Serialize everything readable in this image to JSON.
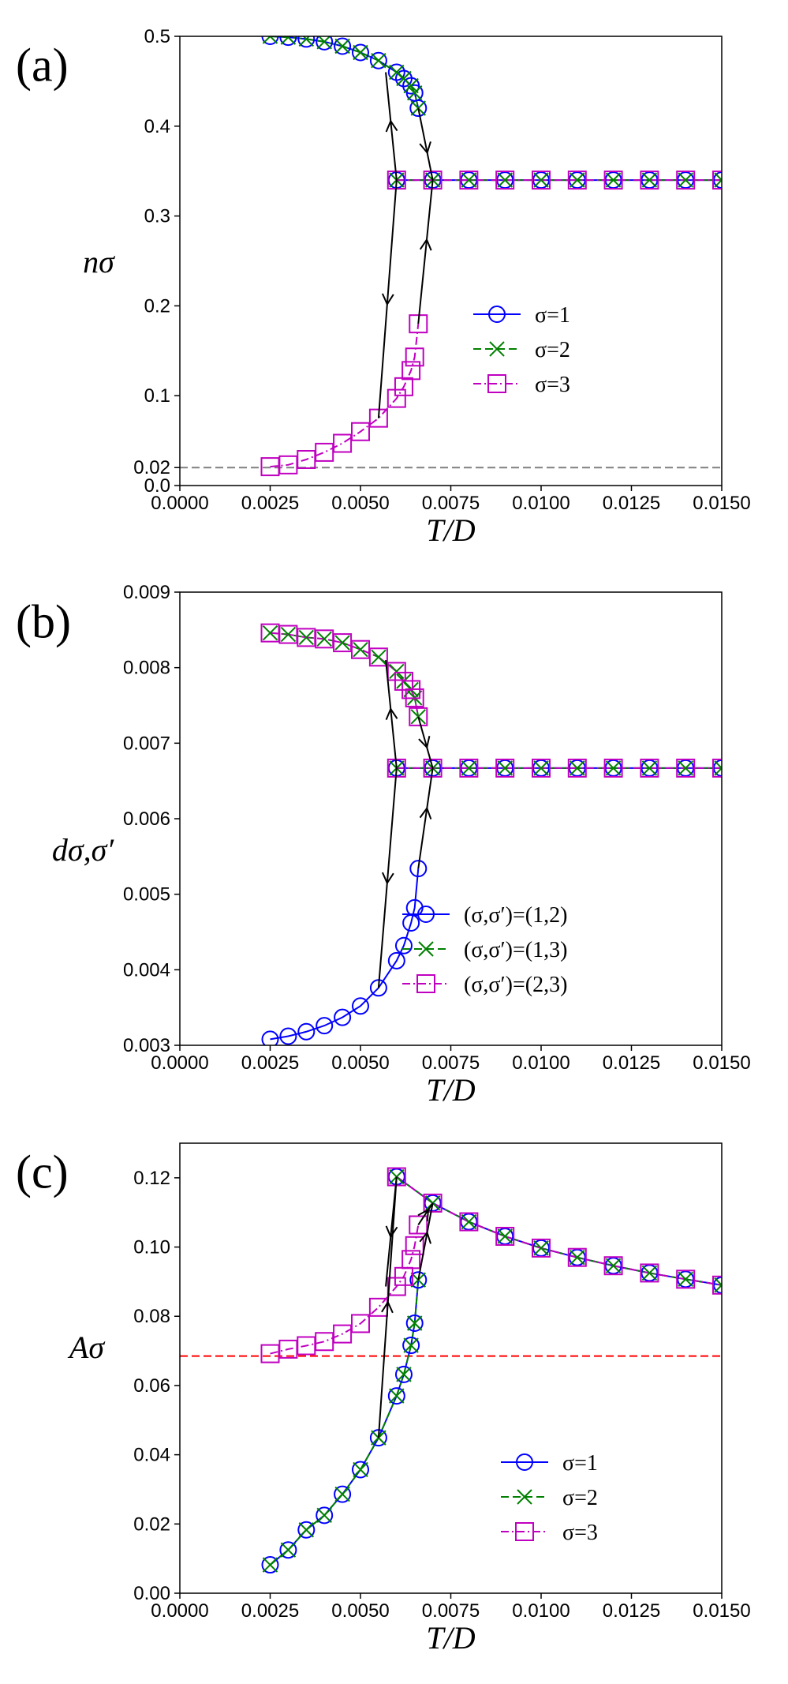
{
  "chart_data": [
    {
      "type": "line",
      "panel_label": "(a)",
      "xlabel": "T/D",
      "ylabel": "nσ",
      "xlim": [
        0.0,
        0.015
      ],
      "ylim": [
        0.0,
        0.5
      ],
      "xticks": [
        "0.0000",
        "0.0025",
        "0.0050",
        "0.0075",
        "0.0100",
        "0.0125",
        "0.0150"
      ],
      "yticks": [
        "0.0",
        "0.02",
        "0.1",
        "0.2",
        "0.3",
        "0.4",
        "0.5"
      ],
      "ytick_values": [
        0.0,
        0.02,
        0.1,
        0.2,
        0.3,
        0.4,
        0.5
      ],
      "legend_position": "center-right",
      "reference_line": {
        "y": 0.02,
        "color": "#808080"
      },
      "series": [
        {
          "name": "σ=1",
          "color": "#0000ff",
          "marker": "circle",
          "style": "solid",
          "branches": [
            {
              "x": [
                0.0025,
                0.003,
                0.0035,
                0.004,
                0.0045,
                0.005,
                0.0055,
                0.006,
                0.0062,
                0.0064,
                0.0065,
                0.0066
              ],
              "y": [
                0.5,
                0.499,
                0.497,
                0.494,
                0.489,
                0.482,
                0.473,
                0.46,
                0.453,
                0.445,
                0.437,
                0.42
              ]
            },
            {
              "x": [
                0.006,
                0.007,
                0.008,
                0.009,
                0.01,
                0.011,
                0.012,
                0.013,
                0.014,
                0.015
              ],
              "y": [
                0.34,
                0.34,
                0.34,
                0.34,
                0.34,
                0.34,
                0.34,
                0.34,
                0.34,
                0.34
              ]
            }
          ]
        },
        {
          "name": "σ=2",
          "color": "#008000",
          "marker": "x",
          "style": "dashed",
          "branches": [
            {
              "x": [
                0.0025,
                0.003,
                0.0035,
                0.004,
                0.0045,
                0.005,
                0.0055,
                0.006,
                0.0062,
                0.0064,
                0.0065,
                0.0066
              ],
              "y": [
                0.5,
                0.499,
                0.497,
                0.494,
                0.489,
                0.482,
                0.473,
                0.46,
                0.453,
                0.445,
                0.437,
                0.42
              ]
            },
            {
              "x": [
                0.006,
                0.007,
                0.008,
                0.009,
                0.01,
                0.011,
                0.012,
                0.013,
                0.014,
                0.015
              ],
              "y": [
                0.34,
                0.34,
                0.34,
                0.34,
                0.34,
                0.34,
                0.34,
                0.34,
                0.34,
                0.34
              ]
            }
          ]
        },
        {
          "name": "σ=3",
          "color": "#c000c0",
          "marker": "square",
          "style": "dashdot",
          "branches": [
            {
              "x": [
                0.0025,
                0.003,
                0.0035,
                0.004,
                0.0045,
                0.005,
                0.0055,
                0.006,
                0.0062,
                0.0064,
                0.0065,
                0.0066
              ],
              "y": [
                0.021,
                0.023,
                0.029,
                0.037,
                0.047,
                0.06,
                0.075,
                0.097,
                0.11,
                0.128,
                0.143,
                0.18
              ]
            },
            {
              "x": [
                0.006,
                0.007,
                0.008,
                0.009,
                0.01,
                0.011,
                0.012,
                0.013,
                0.014,
                0.015
              ],
              "y": [
                0.34,
                0.34,
                0.34,
                0.34,
                0.34,
                0.34,
                0.34,
                0.34,
                0.34,
                0.34
              ]
            }
          ]
        }
      ],
      "hysteresis_arrows": [
        {
          "points": [
            [
              0.0055,
              0.075
            ],
            [
              0.006,
              0.34
            ]
          ],
          "arrow_at": 0.5,
          "direction": "down"
        },
        {
          "points": [
            [
              0.006,
              0.34
            ],
            [
              0.0057,
              0.46
            ]
          ],
          "arrow_at": 0.5,
          "direction": "up"
        },
        {
          "points": [
            [
              0.0066,
              0.42
            ],
            [
              0.007,
              0.34
            ]
          ],
          "arrow_at": 0.55,
          "direction": "down"
        },
        {
          "points": [
            [
              0.0066,
              0.18
            ],
            [
              0.007,
              0.34
            ]
          ],
          "arrow_at": 0.55,
          "direction": "up"
        }
      ]
    },
    {
      "type": "line",
      "panel_label": "(b)",
      "xlabel": "T/D",
      "ylabel": "dσ,σ′",
      "xlim": [
        0.0,
        0.015
      ],
      "ylim": [
        0.003,
        0.009
      ],
      "xticks": [
        "0.0000",
        "0.0025",
        "0.0050",
        "0.0075",
        "0.0100",
        "0.0125",
        "0.0150"
      ],
      "yticks": [
        "0.003",
        "0.004",
        "0.005",
        "0.006",
        "0.007",
        "0.008",
        "0.009"
      ],
      "ytick_values": [
        0.003,
        0.004,
        0.005,
        0.006,
        0.007,
        0.008,
        0.009
      ],
      "legend_position": "center-right",
      "series": [
        {
          "name": "(σ,σ′)=(1,2)",
          "color": "#0000ff",
          "marker": "circle",
          "style": "solid",
          "branches": [
            {
              "x": [
                0.0025,
                0.003,
                0.0035,
                0.004,
                0.0045,
                0.005,
                0.0055,
                0.006,
                0.0062,
                0.0064,
                0.0065,
                0.0066
              ],
              "y": [
                0.00308,
                0.00312,
                0.00318,
                0.00326,
                0.00337,
                0.00352,
                0.00376,
                0.00412,
                0.00432,
                0.00462,
                0.00482,
                0.00534
              ]
            },
            {
              "x": [
                0.006,
                0.007,
                0.008,
                0.009,
                0.01,
                0.011,
                0.012,
                0.013,
                0.014,
                0.015
              ],
              "y": [
                0.00667,
                0.00667,
                0.00667,
                0.00667,
                0.00667,
                0.00667,
                0.00667,
                0.00667,
                0.00667,
                0.00667
              ]
            }
          ]
        },
        {
          "name": "(σ,σ′)=(1,3)",
          "color": "#008000",
          "marker": "x",
          "style": "dashed",
          "branches": [
            {
              "x": [
                0.0025,
                0.003,
                0.0035,
                0.004,
                0.0045,
                0.005,
                0.0055,
                0.006,
                0.0062,
                0.0064,
                0.0065,
                0.0066
              ],
              "y": [
                0.00846,
                0.00844,
                0.0084,
                0.00838,
                0.00833,
                0.00824,
                0.00814,
                0.00795,
                0.00782,
                0.00771,
                0.0076,
                0.00735
              ]
            },
            {
              "x": [
                0.006,
                0.007,
                0.008,
                0.009,
                0.01,
                0.011,
                0.012,
                0.013,
                0.014,
                0.015
              ],
              "y": [
                0.00667,
                0.00667,
                0.00667,
                0.00667,
                0.00667,
                0.00667,
                0.00667,
                0.00667,
                0.00667,
                0.00667
              ]
            }
          ]
        },
        {
          "name": "(σ,σ′)=(2,3)",
          "color": "#c000c0",
          "marker": "square",
          "style": "dashdot",
          "branches": [
            {
              "x": [
                0.0025,
                0.003,
                0.0035,
                0.004,
                0.0045,
                0.005,
                0.0055,
                0.006,
                0.0062,
                0.0064,
                0.0065,
                0.0066
              ],
              "y": [
                0.00846,
                0.00844,
                0.0084,
                0.00838,
                0.00833,
                0.00824,
                0.00814,
                0.00795,
                0.00782,
                0.00771,
                0.0076,
                0.00735
              ]
            },
            {
              "x": [
                0.006,
                0.007,
                0.008,
                0.009,
                0.01,
                0.011,
                0.012,
                0.013,
                0.014,
                0.015
              ],
              "y": [
                0.00667,
                0.00667,
                0.00667,
                0.00667,
                0.00667,
                0.00667,
                0.00667,
                0.00667,
                0.00667,
                0.00667
              ]
            }
          ]
        }
      ],
      "hysteresis_arrows": [
        {
          "points": [
            [
              0.0055,
              0.00376
            ],
            [
              0.006,
              0.00667
            ]
          ],
          "arrow_at": 0.5,
          "direction": "down"
        },
        {
          "points": [
            [
              0.006,
              0.00667
            ],
            [
              0.0057,
              0.0081
            ]
          ],
          "arrow_at": 0.5,
          "direction": "up"
        },
        {
          "points": [
            [
              0.0066,
              0.00735
            ],
            [
              0.007,
              0.00667
            ]
          ],
          "arrow_at": 0.5,
          "direction": "down"
        },
        {
          "points": [
            [
              0.0066,
              0.00534
            ],
            [
              0.007,
              0.00667
            ]
          ],
          "arrow_at": 0.55,
          "direction": "up"
        }
      ]
    },
    {
      "type": "line",
      "panel_label": "(c)",
      "xlabel": "T/D",
      "ylabel": "Aσ",
      "xlim": [
        0.0,
        0.015
      ],
      "ylim": [
        0.0,
        0.13
      ],
      "xticks": [
        "0.0000",
        "0.0025",
        "0.0050",
        "0.0075",
        "0.0100",
        "0.0125",
        "0.0150"
      ],
      "yticks": [
        "0.00",
        "0.02",
        "0.04",
        "0.06",
        "0.08",
        "0.10",
        "0.12"
      ],
      "ytick_values": [
        0.0,
        0.02,
        0.04,
        0.06,
        0.08,
        0.1,
        0.12
      ],
      "legend_position": "lower-right",
      "reference_line": {
        "y": 0.0685,
        "color": "#ff0000"
      },
      "series": [
        {
          "name": "σ=1",
          "color": "#0000ff",
          "marker": "circle",
          "style": "solid",
          "branches": [
            {
              "x": [
                0.0025,
                0.003,
                0.0035,
                0.004,
                0.0045,
                0.005,
                0.0055,
                0.006,
                0.0062,
                0.0064,
                0.0065,
                0.0066
              ],
              "y": [
                0.0082,
                0.0125,
                0.0183,
                0.0225,
                0.0286,
                0.0357,
                0.0449,
                0.057,
                0.0632,
                0.0716,
                0.078,
                0.0905
              ]
            },
            {
              "x": [
                0.006,
                0.007,
                0.008,
                0.009,
                0.01,
                0.011,
                0.012,
                0.013,
                0.014,
                0.015
              ],
              "y": [
                0.1203,
                0.1127,
                0.1073,
                0.1031,
                0.0997,
                0.097,
                0.0946,
                0.0925,
                0.0907,
                0.089
              ]
            }
          ]
        },
        {
          "name": "σ=2",
          "color": "#008000",
          "marker": "x",
          "style": "dashed",
          "branches": [
            {
              "x": [
                0.0025,
                0.003,
                0.0035,
                0.004,
                0.0045,
                0.005,
                0.0055,
                0.006,
                0.0062,
                0.0064,
                0.0065,
                0.0066
              ],
              "y": [
                0.0082,
                0.0125,
                0.0183,
                0.0225,
                0.0286,
                0.0357,
                0.0449,
                0.057,
                0.0632,
                0.0716,
                0.078,
                0.0905
              ]
            },
            {
              "x": [
                0.006,
                0.007,
                0.008,
                0.009,
                0.01,
                0.011,
                0.012,
                0.013,
                0.014,
                0.015
              ],
              "y": [
                0.1203,
                0.1127,
                0.1073,
                0.1031,
                0.0997,
                0.097,
                0.0946,
                0.0925,
                0.0907,
                0.089
              ]
            }
          ]
        },
        {
          "name": "σ=3",
          "color": "#c000c0",
          "marker": "square",
          "style": "dashdot",
          "branches": [
            {
              "x": [
                0.0025,
                0.003,
                0.0035,
                0.004,
                0.0045,
                0.005,
                0.0055,
                0.006,
                0.0062,
                0.0064,
                0.0065,
                0.0066
              ],
              "y": [
                0.0692,
                0.0705,
                0.0715,
                0.0727,
                0.0749,
                0.0779,
                0.0826,
                0.0886,
                0.0915,
                0.0964,
                0.1004,
                0.1064
              ]
            },
            {
              "x": [
                0.006,
                0.007,
                0.008,
                0.009,
                0.01,
                0.011,
                0.012,
                0.013,
                0.014,
                0.015
              ],
              "y": [
                0.1203,
                0.1127,
                0.1073,
                0.1031,
                0.0997,
                0.097,
                0.0946,
                0.0925,
                0.0907,
                0.089
              ]
            }
          ]
        }
      ],
      "hysteresis_arrows": [
        {
          "points": [
            [
              0.0055,
              0.0449
            ],
            [
              0.006,
              0.1203
            ]
          ],
          "arrow_at": 0.5,
          "direction": "up"
        },
        {
          "points": [
            [
              0.006,
              0.1203
            ],
            [
              0.0057,
              0.0886
            ]
          ],
          "arrow_at": 0.5,
          "direction": "down"
        },
        {
          "points": [
            [
              0.0066,
              0.0905
            ],
            [
              0.007,
              0.1127
            ]
          ],
          "arrow_at": 0.55,
          "direction": "up"
        },
        {
          "points": [
            [
              0.0066,
              0.1064
            ],
            [
              0.007,
              0.1127
            ]
          ],
          "arrow_at": 0.5,
          "direction": "up"
        }
      ]
    }
  ]
}
